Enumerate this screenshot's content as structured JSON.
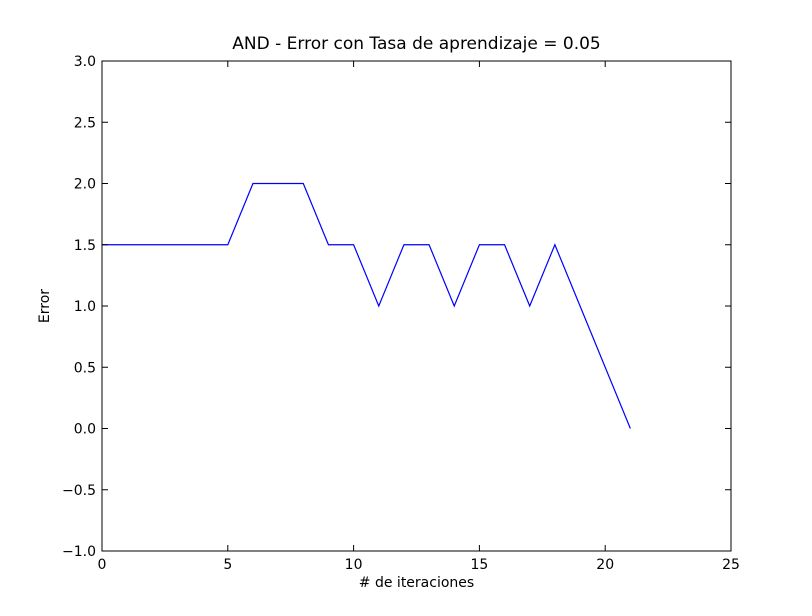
{
  "chart_data": {
    "type": "line",
    "title": "AND - Error con Tasa de aprendizaje = 0.05",
    "xlabel": "# de iteraciones",
    "ylabel": "Error",
    "xlim": [
      0,
      25
    ],
    "ylim": [
      -1.0,
      3.0
    ],
    "xticks": [
      0,
      5,
      10,
      15,
      20,
      25
    ],
    "xtick_labels": [
      "0",
      "5",
      "10",
      "15",
      "20",
      "25"
    ],
    "yticks": [
      -1.0,
      -0.5,
      0.0,
      0.5,
      1.0,
      1.5,
      2.0,
      2.5,
      3.0
    ],
    "ytick_labels": [
      "−1.0",
      "−0.5",
      "0.0",
      "0.5",
      "1.0",
      "1.5",
      "2.0",
      "2.5",
      "3.0"
    ],
    "grid": false,
    "series": [
      {
        "color": "#0000ff",
        "x": [
          0,
          1,
          2,
          3,
          4,
          5,
          6,
          7,
          8,
          9,
          10,
          11,
          12,
          13,
          14,
          15,
          16,
          17,
          18,
          19,
          20,
          21
        ],
        "y": [
          1.5,
          1.5,
          1.5,
          1.5,
          1.5,
          1.5,
          2.0,
          2.0,
          2.0,
          1.5,
          1.5,
          1.0,
          1.5,
          1.5,
          1.0,
          1.5,
          1.5,
          1.0,
          1.5,
          1.0,
          0.5,
          0.0
        ]
      }
    ]
  }
}
